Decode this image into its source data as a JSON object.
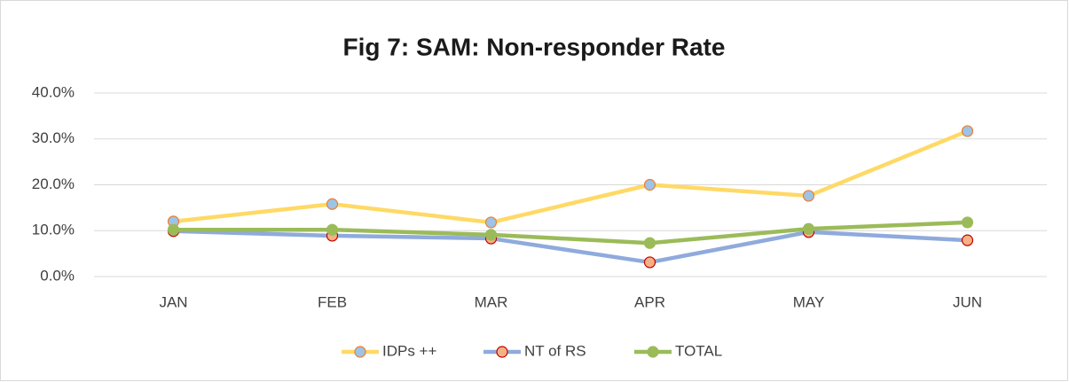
{
  "chart_data": {
    "type": "line",
    "title": "Fig 7: SAM: Non-responder Rate",
    "categories": [
      "JAN",
      "FEB",
      "MAR",
      "APR",
      "MAY",
      "JUN"
    ],
    "series": [
      {
        "name": "IDPs ++",
        "color": "#ffd966",
        "marker_fill": "#9dc3e6",
        "marker_edge": "#ed7d31",
        "values": [
          12.0,
          15.8,
          11.8,
          20.0,
          17.6,
          31.7
        ]
      },
      {
        "name": "NT of RS",
        "color": "#8faadc",
        "marker_fill": "#f4b183",
        "marker_edge": "#c00000",
        "values": [
          9.9,
          8.9,
          8.3,
          3.1,
          9.7,
          7.9
        ]
      },
      {
        "name": "TOTAL",
        "color": "#9bbb59",
        "marker_fill": "#9bbb59",
        "marker_edge": "#9bbb59",
        "values": [
          10.2,
          10.2,
          9.1,
          7.3,
          10.4,
          11.8
        ]
      }
    ],
    "ylim": [
      0,
      40
    ],
    "yticks": [
      {
        "value": 0,
        "label": "0.0%"
      },
      {
        "value": 10,
        "label": "10.0%"
      },
      {
        "value": 20,
        "label": "20.0%"
      },
      {
        "value": 30,
        "label": "30.0%"
      },
      {
        "value": 40,
        "label": "40.0%"
      }
    ],
    "grid": true,
    "legend": "bottom"
  }
}
